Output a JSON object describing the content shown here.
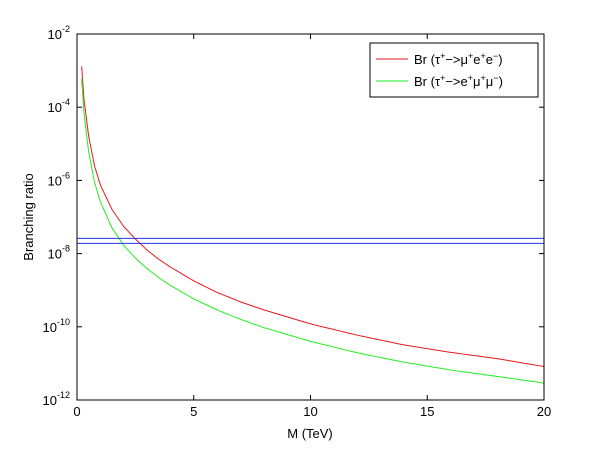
{
  "chart_data": {
    "type": "line",
    "xlabel": "M (TeV)",
    "ylabel": "Branching ratio",
    "xlim": [
      0,
      20
    ],
    "ylim": [
      1e-12,
      0.01
    ],
    "y_scale": "log",
    "x_ticks": [
      0,
      5,
      10,
      15,
      20
    ],
    "x_tick_labels": [
      "0",
      "5",
      "10",
      "15",
      "20"
    ],
    "y_ticks": [
      {
        "value": 1e-12,
        "base": "10",
        "exp": "-12"
      },
      {
        "value": 1e-10,
        "base": "10",
        "exp": "-10"
      },
      {
        "value": 1e-08,
        "base": "10",
        "exp": "-8"
      },
      {
        "value": 1e-06,
        "base": "10",
        "exp": "-6"
      },
      {
        "value": 0.0001,
        "base": "10",
        "exp": "-4"
      },
      {
        "value": 0.01,
        "base": "10",
        "exp": "-2"
      }
    ],
    "grid": false,
    "legend_position": "top-right",
    "series": [
      {
        "name": "Br (τ+−>μ+e+e−)",
        "legend_parts": [
          {
            "t": "Br (τ"
          },
          {
            "t": "+",
            "sup": true
          },
          {
            "t": "−>μ"
          },
          {
            "t": "+",
            "sup": true
          },
          {
            "t": "e"
          },
          {
            "t": "+",
            "sup": true
          },
          {
            "t": "e"
          },
          {
            "t": "−",
            "sup": true
          },
          {
            "t": ")"
          }
        ],
        "color": "#e41a1c",
        "x": [
          0.2,
          0.3,
          0.5,
          0.75,
          1,
          1.5,
          2,
          2.5,
          3,
          3.5,
          4,
          5,
          6,
          7,
          8,
          10,
          12,
          14,
          16,
          18,
          20
        ],
        "y": [
          0.0013,
          0.00016,
          1.6e-05,
          2.5e-06,
          7.5e-07,
          1.6e-07,
          5.5e-08,
          2.5e-08,
          1.25e-08,
          7e-09,
          4.3e-09,
          1.8e-09,
          8.7e-10,
          4.8e-10,
          2.9e-10,
          1.2e-10,
          5.9e-11,
          3.2e-11,
          2e-11,
          1.35e-11,
          8.2e-12
        ]
      },
      {
        "name": "Br (τ+−>e+μ+μ−)",
        "legend_parts": [
          {
            "t": "Br (τ"
          },
          {
            "t": "+",
            "sup": true
          },
          {
            "t": "−>e"
          },
          {
            "t": "+",
            "sup": true
          },
          {
            "t": "μ"
          },
          {
            "t": "+",
            "sup": true
          },
          {
            "t": "μ"
          },
          {
            "t": "−",
            "sup": true
          },
          {
            "t": ")"
          }
        ],
        "color": "#22ee22",
        "x": [
          0.2,
          0.3,
          0.5,
          0.75,
          1,
          1.5,
          2,
          2.5,
          3,
          3.5,
          4,
          5,
          6,
          7,
          8,
          10,
          12,
          14,
          16,
          18,
          20
        ],
        "y": [
          0.0006,
          7e-05,
          6e-06,
          9e-07,
          2.6e-07,
          5e-08,
          1.7e-08,
          7.5e-09,
          3.9e-09,
          2.2e-09,
          1.35e-09,
          5.8e-10,
          2.9e-10,
          1.6e-10,
          9.5e-11,
          4e-11,
          1.95e-11,
          1.08e-11,
          6.6e-12,
          4.4e-12,
          2.9e-12
        ]
      },
      {
        "color": "#2233dd",
        "x": [
          0,
          20
        ],
        "y": [
          2.6e-08,
          2.6e-08
        ]
      },
      {
        "color": "#2233dd",
        "x": [
          0,
          20
        ],
        "y": [
          1.9e-08,
          1.9e-08
        ]
      }
    ]
  }
}
